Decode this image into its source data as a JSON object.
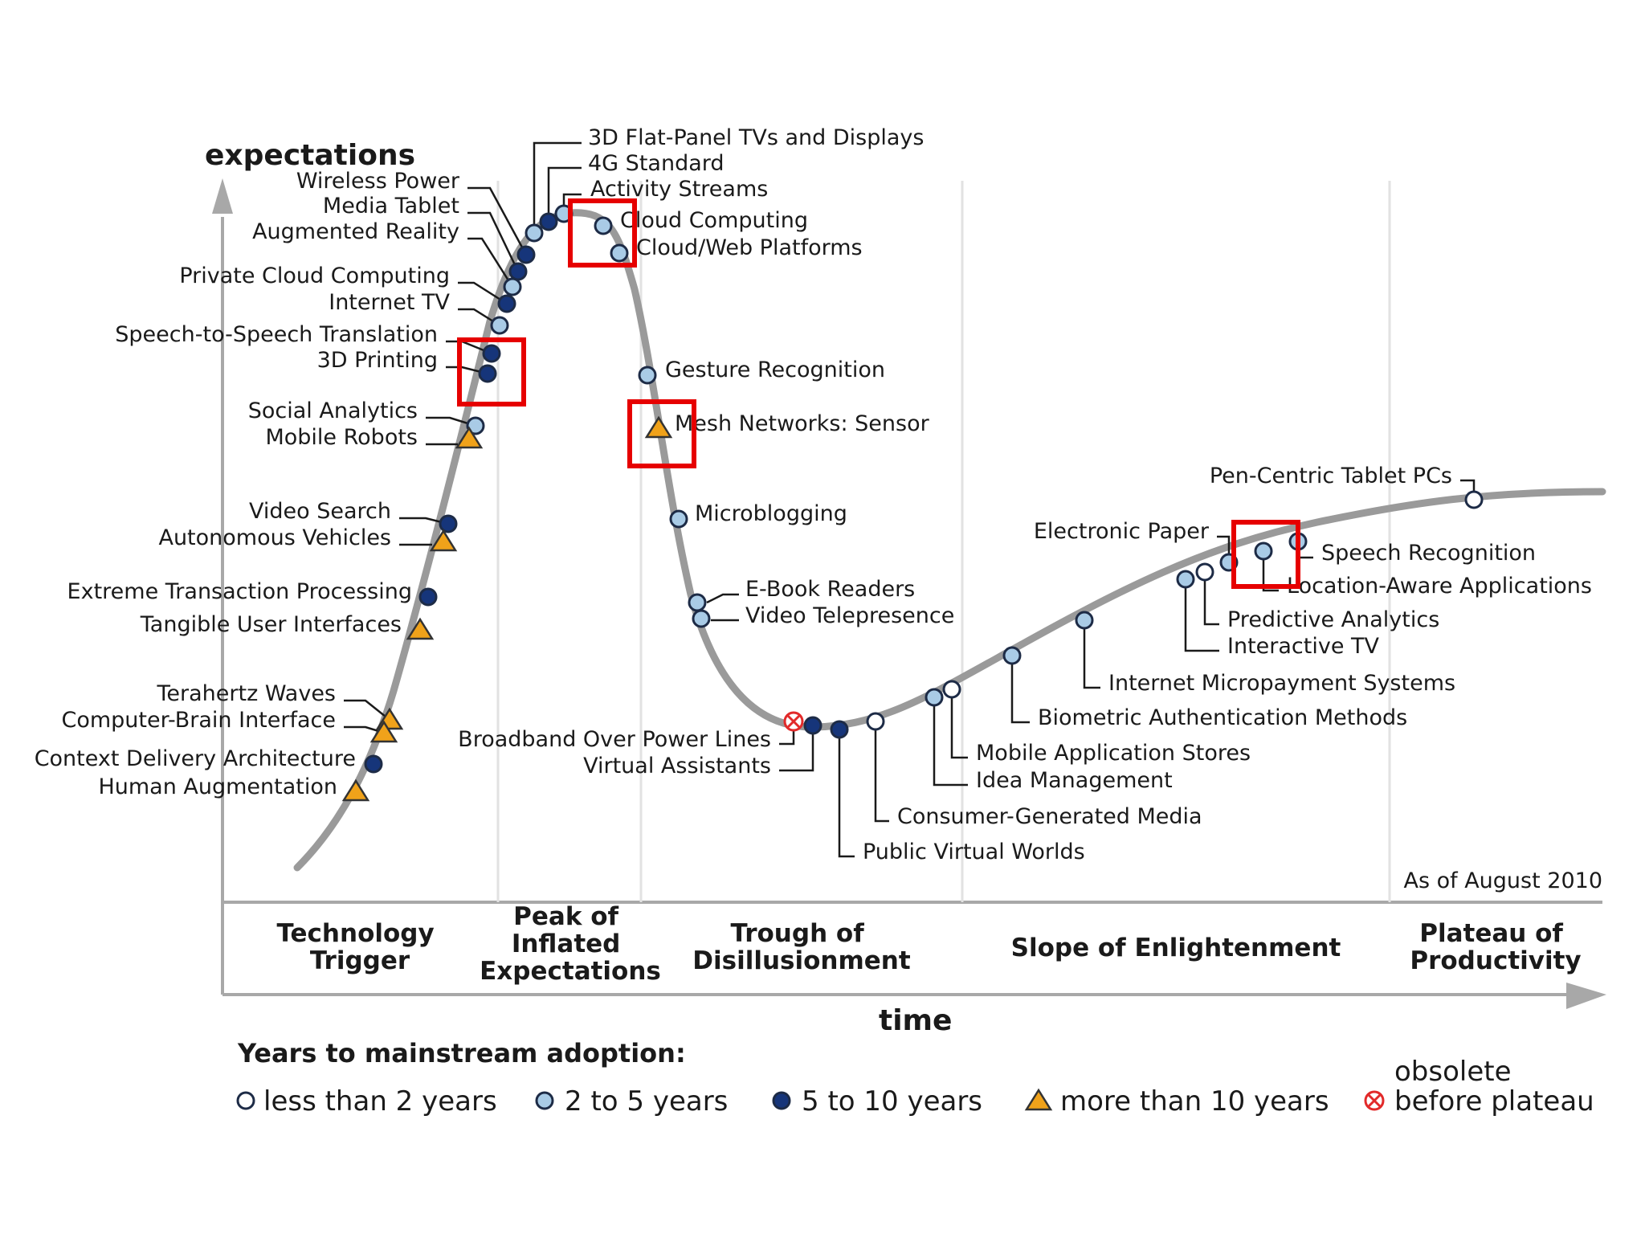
{
  "axis": {
    "y_label": "expectations",
    "x_label": "time"
  },
  "as_of": "As of August 2010",
  "phases": [
    {
      "id": "technology-trigger",
      "lines": [
        "Technology",
        "Trigger"
      ]
    },
    {
      "id": "peak",
      "lines": [
        "Peak of",
        "Inflated",
        "Expectations"
      ]
    },
    {
      "id": "trough",
      "lines": [
        "Trough of",
        "Disillusionment"
      ]
    },
    {
      "id": "slope",
      "lines": [
        "Slope of Enlightenment"
      ]
    },
    {
      "id": "plateau",
      "lines": [
        "Plateau of",
        "Productivity"
      ]
    }
  ],
  "legend": {
    "title": "Years to mainstream adoption:",
    "items": [
      {
        "id": "lt2",
        "symbol": "open-circle",
        "label": "less than 2 years"
      },
      {
        "id": "2to5",
        "symbol": "light-circle",
        "label": "2 to 5 years"
      },
      {
        "id": "5to10",
        "symbol": "dark-circle",
        "label": "5 to 10 years"
      },
      {
        "id": "gt10",
        "symbol": "triangle",
        "label": "more than 10 years"
      },
      {
        "id": "obs",
        "symbol": "crossed-circle",
        "label_lines": [
          "obsolete",
          "before plateau"
        ]
      }
    ]
  },
  "colors": {
    "curve": "#9a9a9a",
    "open": "#ffffff",
    "light": "#a9cbe6",
    "dark": "#16357a",
    "triangle": "#f0a21a",
    "obsolete": "#e22a2a",
    "highlight": "#e60000"
  },
  "technologies": [
    {
      "name": "3D Flat-Panel TVs and Displays",
      "category": "2to5"
    },
    {
      "name": "4G Standard",
      "category": "5to10"
    },
    {
      "name": "Activity Streams",
      "category": "2to5"
    },
    {
      "name": "Cloud Computing",
      "category": "2to5"
    },
    {
      "name": "Cloud/Web Platforms",
      "category": "2to5"
    },
    {
      "name": "Wireless Power",
      "category": "5to10"
    },
    {
      "name": "Media Tablet",
      "category": "5to10"
    },
    {
      "name": "Augmented Reality",
      "category": "2to5"
    },
    {
      "name": "Private Cloud Computing",
      "category": "5to10"
    },
    {
      "name": "Internet TV",
      "category": "2to5"
    },
    {
      "name": "Speech-to-Speech Translation",
      "category": "5to10"
    },
    {
      "name": "3D Printing",
      "category": "5to10"
    },
    {
      "name": "Social Analytics",
      "category": "2to5"
    },
    {
      "name": "Mobile Robots",
      "category": "gt10"
    },
    {
      "name": "Video Search",
      "category": "5to10"
    },
    {
      "name": "Autonomous Vehicles",
      "category": "gt10"
    },
    {
      "name": "Extreme Transaction Processing",
      "category": "5to10"
    },
    {
      "name": "Tangible User Interfaces",
      "category": "gt10"
    },
    {
      "name": "Terahertz Waves",
      "category": "gt10"
    },
    {
      "name": "Computer-Brain Interface",
      "category": "gt10"
    },
    {
      "name": "Context Delivery Architecture",
      "category": "5to10"
    },
    {
      "name": "Human Augmentation",
      "category": "gt10"
    },
    {
      "name": "Gesture Recognition",
      "category": "2to5"
    },
    {
      "name": "Mesh Networks: Sensor",
      "category": "gt10"
    },
    {
      "name": "Microblogging",
      "category": "2to5"
    },
    {
      "name": "E-Book Readers",
      "category": "2to5"
    },
    {
      "name": "Video Telepresence",
      "category": "2to5"
    },
    {
      "name": "Broadband Over Power Lines",
      "category": "obs"
    },
    {
      "name": "Virtual Assistants",
      "category": "5to10"
    },
    {
      "name": "Public Virtual Worlds",
      "category": "5to10"
    },
    {
      "name": "Consumer-Generated Media",
      "category": "lt2"
    },
    {
      "name": "Idea Management",
      "category": "2to5"
    },
    {
      "name": "Mobile Application Stores",
      "category": "lt2"
    },
    {
      "name": "Biometric Authentication Methods",
      "category": "2to5"
    },
    {
      "name": "Internet Micropayment Systems",
      "category": "2to5"
    },
    {
      "name": "Interactive TV",
      "category": "2to5"
    },
    {
      "name": "Predictive Analytics",
      "category": "lt2"
    },
    {
      "name": "Electronic Paper",
      "category": "2to5"
    },
    {
      "name": "Location-Aware Applications",
      "category": "2to5"
    },
    {
      "name": "Speech Recognition",
      "category": "2to5"
    },
    {
      "name": "Pen-Centric Tablet PCs",
      "category": "lt2"
    }
  ]
}
